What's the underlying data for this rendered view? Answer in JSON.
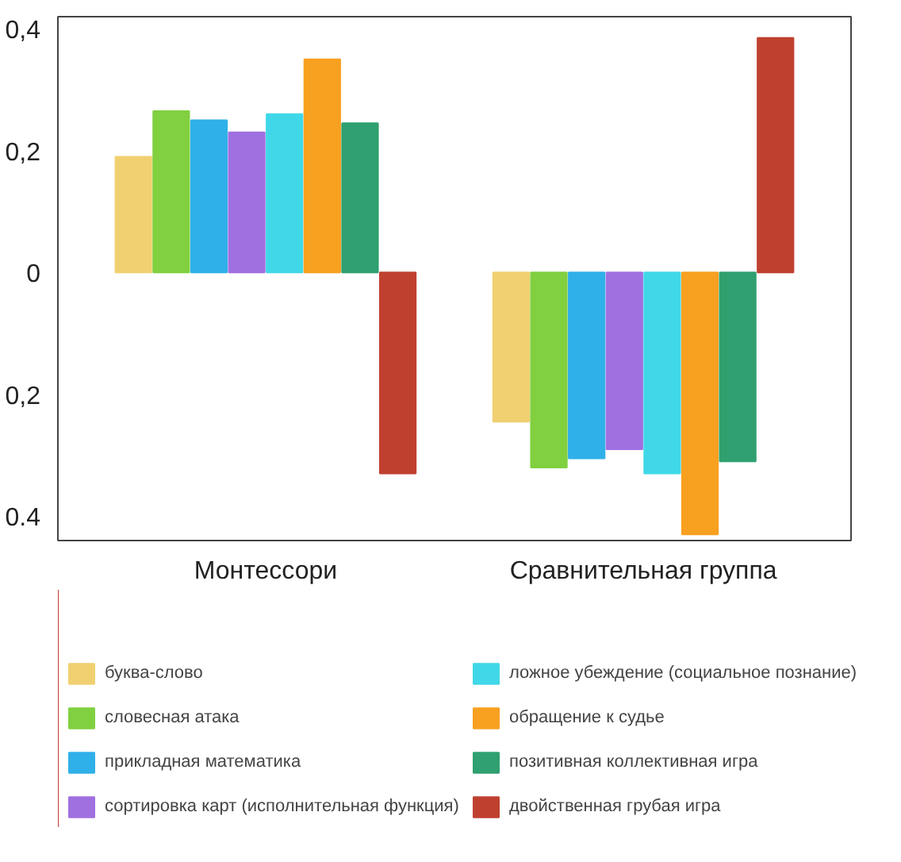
{
  "chart_data": {
    "type": "bar",
    "categories": [
      "Монтессори",
      "Сравнительная группа"
    ],
    "series": [
      {
        "name": "буква-слово",
        "color": "#f0d070",
        "values": [
          0.19,
          -0.245
        ]
      },
      {
        "name": "словесная атака",
        "color": "#80d040",
        "values": [
          0.265,
          -0.32
        ]
      },
      {
        "name": "прикладная математика",
        "color": "#30b0e8",
        "values": [
          0.25,
          -0.305
        ]
      },
      {
        "name": "сортировка карт (исполнительная функция)",
        "color": "#a070e0",
        "values": [
          0.23,
          -0.29
        ]
      },
      {
        "name": "ложное убеждение (социальное познание)",
        "color": "#40d8e8",
        "values": [
          0.26,
          -0.33
        ]
      },
      {
        "name": "обращение к судье",
        "color": "#f8a020",
        "values": [
          0.35,
          -0.43
        ]
      },
      {
        "name": "позитивная коллективная игра",
        "color": "#30a070",
        "values": [
          0.245,
          -0.31
        ]
      },
      {
        "name": "двойственная грубая игра",
        "color": "#c04030",
        "values": [
          -0.33,
          0.385
        ]
      }
    ],
    "ylim": [
      -0.44,
      0.42
    ],
    "yticks": [
      {
        "value": 0.4,
        "label": "0,4"
      },
      {
        "value": 0.2,
        "label": "0,2"
      },
      0,
      {
        "value": -0.2,
        "label": "0,2"
      },
      {
        "value": -0.4,
        "label": "0.4"
      }
    ],
    "grid": false,
    "legend": "bottom"
  }
}
